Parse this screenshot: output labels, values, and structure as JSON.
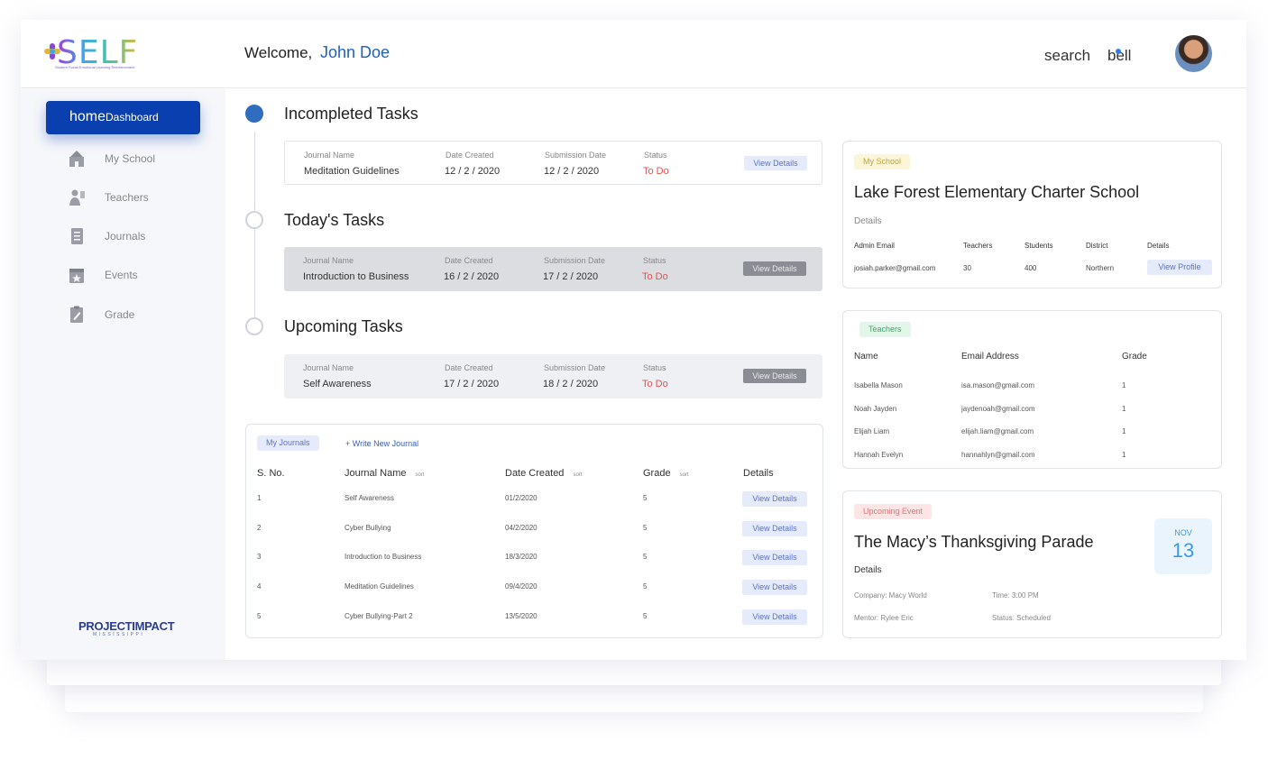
{
  "header": {
    "logo_text": "SELF",
    "logo_tagline": "Student Social Emotional Learning Reinforcement",
    "welcome_prefix": "Welcome,",
    "user_name": "John Doe",
    "search_label": "search",
    "bell_label": "bell"
  },
  "sidebar": {
    "active": {
      "icon_text": "home",
      "label": "Dashboard"
    },
    "items": [
      {
        "label": "My School",
        "icon": "school-icon"
      },
      {
        "label": "Teachers",
        "icon": "teacher-icon"
      },
      {
        "label": "Journals",
        "icon": "journal-icon"
      },
      {
        "label": "Events",
        "icon": "calendar-icon"
      },
      {
        "label": "Grade",
        "icon": "grade-icon"
      }
    ],
    "footer_logo": {
      "main": "PROJECTIMPACT",
      "sub": "MISSISSIPPI"
    }
  },
  "tasks": {
    "sections": [
      {
        "title": "Incompleted Tasks",
        "headers": [
          "Journal Name",
          "Date Created",
          "Submission Date",
          "Status"
        ],
        "journal_name": "Meditation Guidelines",
        "date_created": "12 / 2 / 2020",
        "submission_date": "12 / 2 / 2020",
        "status": "To Do",
        "button": "View Details"
      },
      {
        "title": "Today's Tasks",
        "headers": [
          "Journal Name",
          "Date Created",
          "Submission Date",
          "Status"
        ],
        "journal_name": "Introduction to Business",
        "date_created": "16 / 2 / 2020",
        "submission_date": "17 / 2 / 2020",
        "status": "To Do",
        "button": "View Details"
      },
      {
        "title": "Upcoming Tasks",
        "headers": [
          "Journal Name",
          "Date Created",
          "Submission Date",
          "Status"
        ],
        "journal_name": "Self Awareness",
        "date_created": "17 / 2 / 2020",
        "submission_date": "18 / 2 / 2020",
        "status": "To Do",
        "button": "View Details"
      }
    ]
  },
  "journals": {
    "tag": "My Journals",
    "write_new": "+ Write New Journal",
    "headers": {
      "sno": "S. No.",
      "name": "Journal Name",
      "date": "Date Created",
      "grade": "Grade",
      "details": "Details",
      "sort": "sort"
    },
    "rows": [
      {
        "sno": "1",
        "name": "Self Awareness",
        "date": "01/2/2020",
        "grade": "5",
        "button": "View Details"
      },
      {
        "sno": "2",
        "name": "Cyber Bullying",
        "date": "04/2/2020",
        "grade": "5",
        "button": "View Details"
      },
      {
        "sno": "3",
        "name": "Introduction to Business",
        "date": "18/3/2020",
        "grade": "5",
        "button": "View Details"
      },
      {
        "sno": "4",
        "name": "Meditation Guidelines",
        "date": "09/4/2020",
        "grade": "5",
        "button": "View Details"
      },
      {
        "sno": "5",
        "name": "Cyber Bullying-Part 2",
        "date": "13/5/2020",
        "grade": "5",
        "button": "View Details"
      }
    ]
  },
  "school": {
    "tag": "My School",
    "name": "Lake Forest Elementary Charter School",
    "details_label": "Details",
    "headers": [
      "Admin Email",
      "Teachers",
      "Students",
      "District",
      "Details"
    ],
    "admin_email": "josiah.parker@gmail.com",
    "teachers": "30",
    "students": "400",
    "district": "Northern",
    "button": "View Profile"
  },
  "teachers": {
    "tag": "Teachers",
    "headers": [
      "Name",
      "Email Address",
      "Grade"
    ],
    "rows": [
      {
        "name": "Isabella Mason",
        "email": "isa.mason@gmail.com",
        "grade": "1"
      },
      {
        "name": "Noah Jayden",
        "email": "jaydenoah@gmail.com",
        "grade": "1"
      },
      {
        "name": "Elijah Liam",
        "email": "elijah.liam@gmail.com",
        "grade": "1"
      },
      {
        "name": "Hannah Evelyn",
        "email": "hannahlyn@gmail.com",
        "grade": "1"
      }
    ]
  },
  "event": {
    "tag": "Upcoming Event",
    "name": "The Macy’s Thanksgiving Parade",
    "details_label": "Details",
    "company": "Company: Macy World",
    "time": "Time: 3:00 PM",
    "mentor": "Mentor: Rylee Eric",
    "status": "Status: Scheduled",
    "month": "NOV",
    "day": "13"
  },
  "colors": {
    "brand_blue": "#0a3fb0",
    "todo_red": "#e05252",
    "link_blue": "#1f5fbf"
  }
}
